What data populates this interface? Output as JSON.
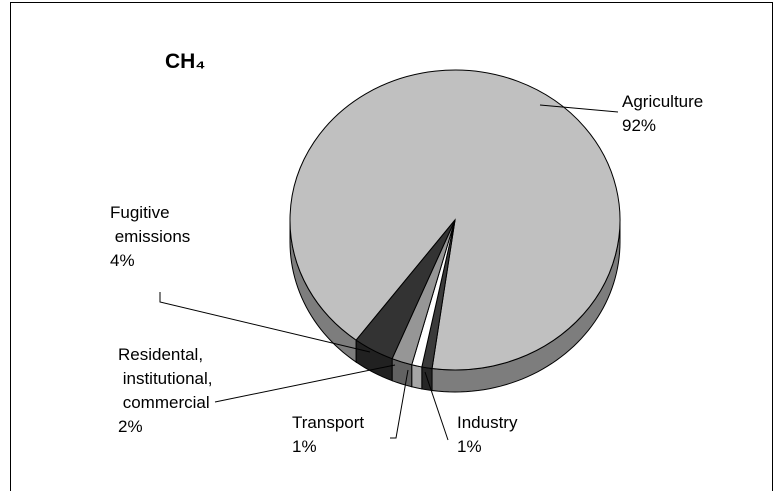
{
  "chart_data": {
    "type": "pie3d",
    "title": "CH₄",
    "categories": [
      "Agriculture",
      "Industry",
      "Transport",
      "Residental, institutional, commercial",
      "Fugitive emissions"
    ],
    "values": [
      92,
      1,
      1,
      2,
      4
    ],
    "value_labels": [
      "92%",
      "1%",
      "1%",
      "2%",
      "4%"
    ],
    "colors": [
      "#c0c0c0",
      "#3a3a3a",
      "#ffffff",
      "#969696",
      "#333333"
    ]
  }
}
